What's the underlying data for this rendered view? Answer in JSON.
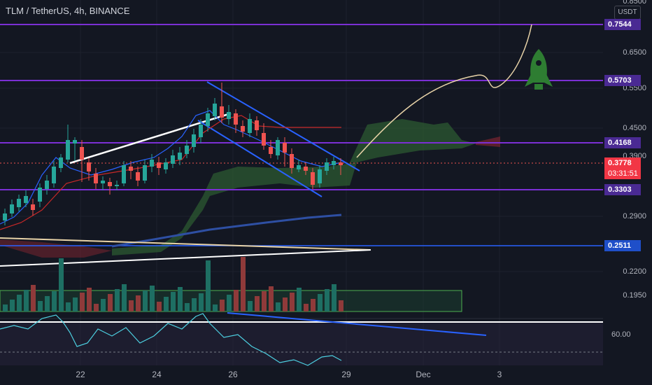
{
  "header": {
    "title": "TLM / TetherUS, 4h, BINANCE"
  },
  "price_axis": {
    "currency_badge": "USDT",
    "ticks": [
      "0.8500",
      "0.6500",
      "0.5500",
      "0.4500",
      "0.3900",
      "0.2900",
      "0.2200",
      "0.1950"
    ]
  },
  "levels": {
    "l1": "0.7544",
    "l2": "0.5703",
    "l3": "0.4168",
    "current": "0.3778",
    "countdown": "03:31:51",
    "l4": "0.3303",
    "l5": "0.2511"
  },
  "rsi_axis": {
    "tick": "60.00"
  },
  "time_axis": {
    "ticks": [
      "22",
      "24",
      "26",
      "29",
      "Dec",
      "3"
    ]
  },
  "colors": {
    "background": "#131722",
    "bull_candle": "#26a69a",
    "bear_candle": "#ef5350",
    "level_line": "#7b2fd4",
    "trend_blue": "#2962ff",
    "cloud_green": "#2e5e32",
    "rocket_green": "#2e7d32"
  },
  "icons": {
    "rocket": "rocket-icon"
  }
}
